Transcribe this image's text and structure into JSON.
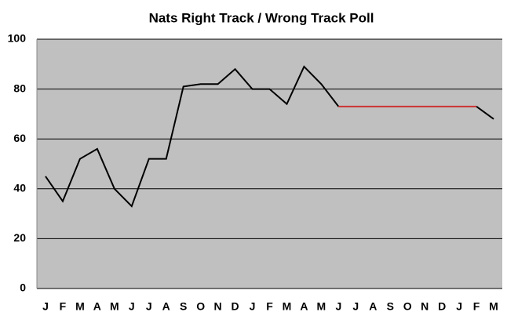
{
  "chart_data": {
    "type": "line",
    "title": "Nats Right Track / Wrong Track Poll",
    "categories": [
      "J",
      "F",
      "M",
      "A",
      "M",
      "J",
      "J",
      "A",
      "S",
      "O",
      "N",
      "D",
      "J",
      "F",
      "M",
      "A",
      "M",
      "J",
      "J",
      "A",
      "S",
      "O",
      "N",
      "D",
      "J",
      "F",
      "M"
    ],
    "series": [
      {
        "color": "#000000",
        "values": [
          45,
          35,
          52,
          56,
          40,
          33,
          52,
          52,
          81,
          82,
          82,
          88,
          80,
          80,
          74,
          89,
          82,
          73,
          null,
          null,
          null,
          null,
          null,
          null,
          null,
          73,
          68
        ]
      },
      {
        "color": "#cc3333",
        "values": [
          null,
          null,
          null,
          null,
          null,
          null,
          null,
          null,
          null,
          null,
          null,
          null,
          null,
          null,
          null,
          null,
          null,
          73,
          73,
          73,
          73,
          73,
          73,
          73,
          73,
          73,
          null
        ]
      }
    ],
    "ylim": [
      0,
      100
    ],
    "yticks": [
      0,
      20,
      40,
      60,
      80,
      100
    ],
    "grid": true,
    "plot_background": "#c0c0c0"
  }
}
